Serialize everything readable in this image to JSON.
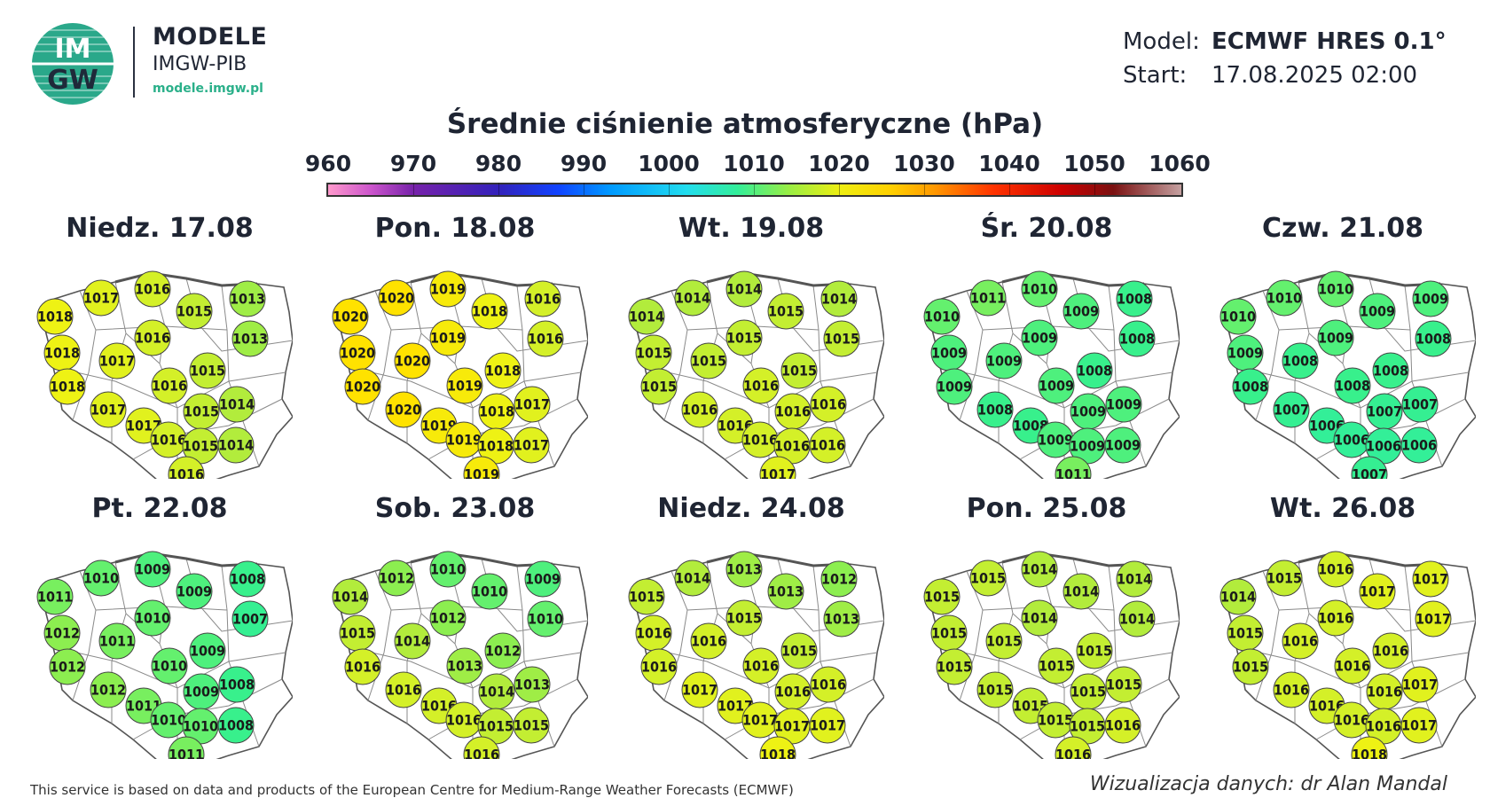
{
  "header": {
    "logo_text_top": "IM",
    "logo_text_bottom": "GW",
    "brand_name": "MODELE",
    "brand_sub": "IMGW-PIB",
    "brand_url": "modele.imgw.pl"
  },
  "meta": {
    "model_label": "Model:",
    "model_value": "ECMWF HRES 0.1°",
    "start_label": "Start:",
    "start_value": "17.08.2025 02:00"
  },
  "title": "Średnie ciśnienie atmosferyczne (hPa)",
  "colorbar": {
    "ticks": [
      "960",
      "970",
      "980",
      "990",
      "1000",
      "1010",
      "1020",
      "1030",
      "1040",
      "1050",
      "1060"
    ],
    "min": 960,
    "max": 1060
  },
  "panels": [
    {
      "title": "Niedz. 17.08",
      "values": [
        "1016",
        "1017",
        "1013",
        "1018",
        "1015",
        "1013",
        "1016",
        "1018",
        "1017",
        "1015",
        "1016",
        "1018",
        "1014",
        "1015",
        "1017",
        "1017",
        "1016",
        "1015",
        "1014",
        "1016"
      ]
    },
    {
      "title": "Pon. 18.08",
      "values": [
        "1019",
        "1020",
        "1016",
        "1020",
        "1018",
        "1016",
        "1019",
        "1020",
        "1020",
        "1018",
        "1019",
        "1020",
        "1017",
        "1018",
        "1020",
        "1019",
        "1019",
        "1018",
        "1017",
        "1019"
      ]
    },
    {
      "title": "Wt. 19.08",
      "values": [
        "1014",
        "1014",
        "1014",
        "1014",
        "1015",
        "1015",
        "1015",
        "1015",
        "1015",
        "1015",
        "1016",
        "1015",
        "1016",
        "1016",
        "1016",
        "1016",
        "1016",
        "1016",
        "1016",
        "1017"
      ]
    },
    {
      "title": "Śr. 20.08",
      "values": [
        "1010",
        "1011",
        "1008",
        "1010",
        "1009",
        "1008",
        "1009",
        "1009",
        "1009",
        "1008",
        "1009",
        "1009",
        "1009",
        "1009",
        "1008",
        "1008",
        "1009",
        "1009",
        "1009",
        "1011"
      ]
    },
    {
      "title": "Czw. 21.08",
      "values": [
        "1010",
        "1010",
        "1009",
        "1010",
        "1009",
        "1008",
        "1009",
        "1009",
        "1008",
        "1008",
        "1008",
        "1008",
        "1007",
        "1007",
        "1007",
        "1006",
        "1006",
        "1006",
        "1006",
        "1007"
      ]
    },
    {
      "title": "Pt. 22.08",
      "values": [
        "1009",
        "1010",
        "1008",
        "1011",
        "1009",
        "1007",
        "1010",
        "1012",
        "1011",
        "1009",
        "1010",
        "1012",
        "1008",
        "1009",
        "1012",
        "1011",
        "1010",
        "1010",
        "1008",
        "1011"
      ]
    },
    {
      "title": "Sob. 23.08",
      "values": [
        "1010",
        "1012",
        "1009",
        "1014",
        "1010",
        "1010",
        "1012",
        "1015",
        "1014",
        "1012",
        "1013",
        "1016",
        "1013",
        "1014",
        "1016",
        "1016",
        "1016",
        "1015",
        "1015",
        "1016"
      ]
    },
    {
      "title": "Niedz. 24.08",
      "values": [
        "1013",
        "1014",
        "1012",
        "1015",
        "1013",
        "1013",
        "1015",
        "1016",
        "1016",
        "1015",
        "1016",
        "1016",
        "1016",
        "1016",
        "1017",
        "1017",
        "1017",
        "1017",
        "1017",
        "1018"
      ]
    },
    {
      "title": "Pon. 25.08",
      "values": [
        "1014",
        "1015",
        "1014",
        "1015",
        "1014",
        "1014",
        "1014",
        "1015",
        "1015",
        "1015",
        "1015",
        "1015",
        "1015",
        "1015",
        "1015",
        "1015",
        "1015",
        "1015",
        "1016",
        "1016"
      ]
    },
    {
      "title": "Wt. 26.08",
      "values": [
        "1016",
        "1015",
        "1017",
        "1014",
        "1017",
        "1017",
        "1016",
        "1015",
        "1016",
        "1016",
        "1016",
        "1015",
        "1017",
        "1016",
        "1016",
        "1016",
        "1016",
        "1016",
        "1017",
        "1018"
      ]
    }
  ],
  "footer": {
    "left": "This service is based on data and products of the European Centre for Medium-Range Weather Forecasts (ECMWF)",
    "right": "Wizualizacja danych: dr Alan Mandal"
  }
}
